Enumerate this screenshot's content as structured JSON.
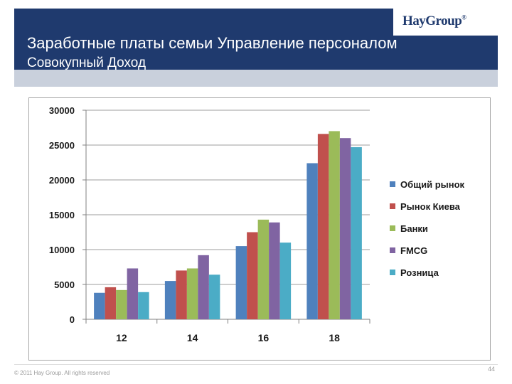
{
  "slide": {
    "title": "Заработные платы семьи Управление персоналом",
    "subtitle": "Совокупный Доход",
    "logo": "HayGroup",
    "logo_mark": "®",
    "footer": "© 2011 Hay Group. All rights reserved",
    "page_number": "44"
  },
  "colors": {
    "header": "#1f3a6e",
    "band": "#c9d0dc"
  },
  "chart_data": {
    "type": "bar",
    "categories": [
      "12",
      "14",
      "16",
      "18"
    ],
    "series": [
      {
        "name": "Общий рынок",
        "color": "#4f81bd",
        "values": [
          3800,
          5500,
          10500,
          22400
        ]
      },
      {
        "name": "Рынок Киева",
        "color": "#c0504d",
        "values": [
          4600,
          7000,
          12500,
          26600
        ]
      },
      {
        "name": "Банки",
        "color": "#9bbb59",
        "values": [
          4200,
          7300,
          14300,
          27000
        ]
      },
      {
        "name": "FMCG",
        "color": "#8064a2",
        "values": [
          7300,
          9200,
          13900,
          26000
        ]
      },
      {
        "name": "Розница",
        "color": "#4bacc6",
        "values": [
          3900,
          6400,
          11000,
          24700
        ]
      }
    ],
    "ylim": [
      0,
      30000
    ],
    "yticks": [
      "0",
      "5000",
      "10000",
      "15000",
      "20000",
      "25000",
      "30000"
    ],
    "grid": true,
    "legend": "right"
  }
}
